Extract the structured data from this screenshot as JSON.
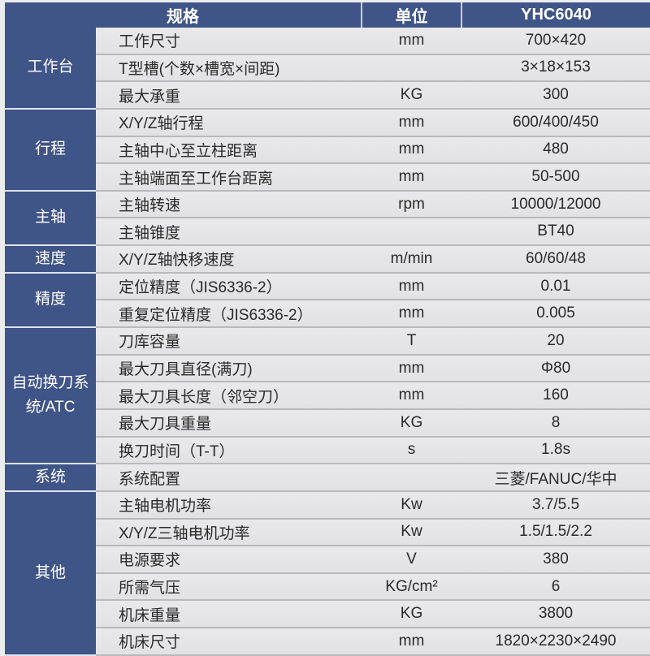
{
  "header": {
    "spec": "规格",
    "unit": "单位",
    "model": "YHC6040"
  },
  "colors": {
    "header_bg": "#3f5487",
    "category_bg": "#3f5487",
    "row_bg": "#e6e6e8"
  },
  "groups": [
    {
      "category": "工作台",
      "rows": [
        {
          "spec": "工作尺寸",
          "unit": "mm",
          "value": "700×420"
        },
        {
          "spec": "T型槽(个数×槽宽×间距)",
          "unit": "",
          "value": "3×18×153"
        },
        {
          "spec": "最大承重",
          "unit": "KG",
          "value": "300"
        }
      ]
    },
    {
      "category": "行程",
      "rows": [
        {
          "spec": "X/Y/Z轴行程",
          "unit": "mm",
          "value": "600/400/450"
        },
        {
          "spec": "主轴中心至立柱距离",
          "unit": "mm",
          "value": "480"
        },
        {
          "spec": "主轴端面至工作台距离",
          "unit": "mm",
          "value": "50-500"
        }
      ]
    },
    {
      "category": "主轴",
      "rows": [
        {
          "spec": "主轴转速",
          "unit": "rpm",
          "value": "10000/12000"
        },
        {
          "spec": "主轴锥度",
          "unit": "",
          "value": "BT40"
        }
      ]
    },
    {
      "category": "速度",
      "rows": [
        {
          "spec": "X/Y/Z轴快移速度",
          "unit": "m/min",
          "value": "60/60/48"
        }
      ]
    },
    {
      "category": "精度",
      "rows": [
        {
          "spec": "定位精度（JIS6336-2）",
          "unit": "mm",
          "value": "0.01"
        },
        {
          "spec": "重复定位精度（JIS6336-2）",
          "unit": "mm",
          "value": "0.005"
        }
      ]
    },
    {
      "category": "自动换刀系统/ATC",
      "rows": [
        {
          "spec": "刀库容量",
          "unit": "T",
          "value": "20"
        },
        {
          "spec": "最大刀具直径(满刀)",
          "unit": "mm",
          "value": "Φ80"
        },
        {
          "spec": "最大刀具长度（邻空刀）",
          "unit": "mm",
          "value": "160"
        },
        {
          "spec": "最大刀具重量",
          "unit": "KG",
          "value": "8"
        },
        {
          "spec": "换刀时间（T-T）",
          "unit": "s",
          "value": "1.8s"
        }
      ]
    },
    {
      "category": "系统",
      "rows": [
        {
          "spec": "系统配置",
          "unit": "",
          "value": "三菱/FANUC/华中"
        }
      ]
    },
    {
      "category": "其他",
      "rows": [
        {
          "spec": "主轴电机功率",
          "unit": "Kw",
          "value": "3.7/5.5"
        },
        {
          "spec": "X/Y/Z三轴电机功率",
          "unit": "Kw",
          "value": "1.5/1.5/2.2"
        },
        {
          "spec": "电源要求",
          "unit": "V",
          "value": "380"
        },
        {
          "spec": "所需气压",
          "unit": "KG/cm²",
          "value": "6"
        },
        {
          "spec": "机床重量",
          "unit": "KG",
          "value": "3800"
        },
        {
          "spec": "机床尺寸",
          "unit": "mm",
          "value": "1820×2230×2490"
        }
      ]
    }
  ]
}
